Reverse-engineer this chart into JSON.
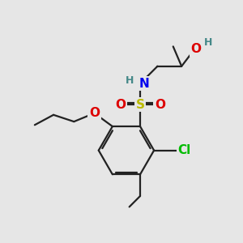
{
  "background_color": "#e6e6e6",
  "bond_color": "#222222",
  "bond_width": 1.6,
  "dbl_sep": 0.09,
  "atom_colors": {
    "O": "#dd0000",
    "N": "#0000ee",
    "S": "#bbbb00",
    "Cl": "#00bb00",
    "H": "#448888",
    "C": "#222222"
  },
  "fs_large": 11,
  "fs_small": 9
}
